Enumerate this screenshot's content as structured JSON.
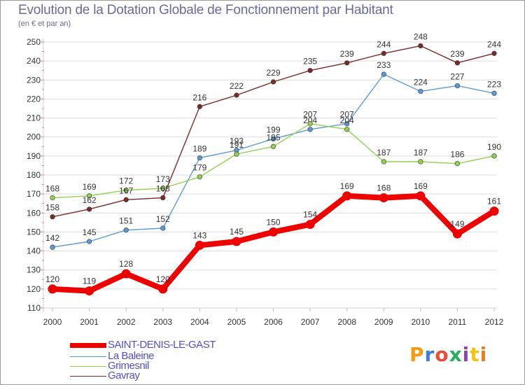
{
  "title": "Evolution de la Dotation Globale de Fonctionnement par Habitant",
  "subtitle": "(en € et par an)",
  "logo_text": "Proxiti",
  "logo_colors": [
    "#f39c12",
    "#3b7dd8",
    "#e74c3c",
    "#27ae60",
    "#8e44ad",
    "#f1c40f",
    "#e67e22"
  ],
  "chart_data": {
    "type": "line",
    "title": "Evolution de la Dotation Globale de Fonctionnement par Habitant",
    "subtitle": "(en € et par an)",
    "xlabel": "",
    "ylabel": "",
    "x": [
      "2000",
      "2001",
      "2002",
      "2003",
      "2004",
      "2005",
      "2006",
      "2007",
      "2008",
      "2009",
      "2010",
      "2011",
      "2012"
    ],
    "ylim": [
      110,
      250
    ],
    "yticks": [
      "110",
      "120",
      "130",
      "140",
      "150",
      "160",
      "170",
      "180",
      "190",
      "200",
      "210",
      "220",
      "230",
      "240",
      "250"
    ],
    "grid": "horizontal",
    "legend": "bottom",
    "series": [
      {
        "name": "SAINT-DENIS-LE-GAST",
        "color": "#ee0000",
        "emphasis": true,
        "values": [
          120,
          119,
          128,
          120,
          143,
          145,
          150,
          154,
          169,
          168,
          169,
          149,
          161
        ],
        "labels": [
          "120",
          "119",
          "128",
          "120",
          "143",
          "145",
          "150",
          "154",
          "169",
          "168",
          "169",
          "149",
          "161"
        ]
      },
      {
        "name": "La Baleine",
        "color": "#5b9bd5",
        "emphasis": false,
        "values": [
          142,
          145,
          151,
          152,
          189,
          193,
          199,
          204,
          207,
          233,
          224,
          227,
          223
        ],
        "labels": [
          "142",
          "145",
          "151",
          "152",
          "189",
          "193",
          "199",
          "204",
          "207",
          "233",
          "224",
          "227",
          "223"
        ]
      },
      {
        "name": "Grimesnil",
        "color": "#92d050",
        "emphasis": false,
        "values": [
          168,
          169,
          172,
          173,
          179,
          191,
          195,
          207,
          204,
          187,
          187,
          186,
          190
        ],
        "labels": [
          "168",
          "169",
          "172",
          "173",
          "179",
          "191",
          "195",
          "207",
          "204",
          "187",
          "187",
          "186",
          "190"
        ]
      },
      {
        "name": "Gavray",
        "color": "#7b2a2a",
        "emphasis": false,
        "values": [
          158,
          162,
          167,
          168,
          216,
          222,
          229,
          235,
          239,
          244,
          248,
          239,
          244
        ],
        "labels": [
          "158",
          "162",
          "167",
          "168",
          "216",
          "222",
          "229",
          "235",
          "239",
          "244",
          "248",
          "239",
          "244"
        ]
      }
    ]
  }
}
